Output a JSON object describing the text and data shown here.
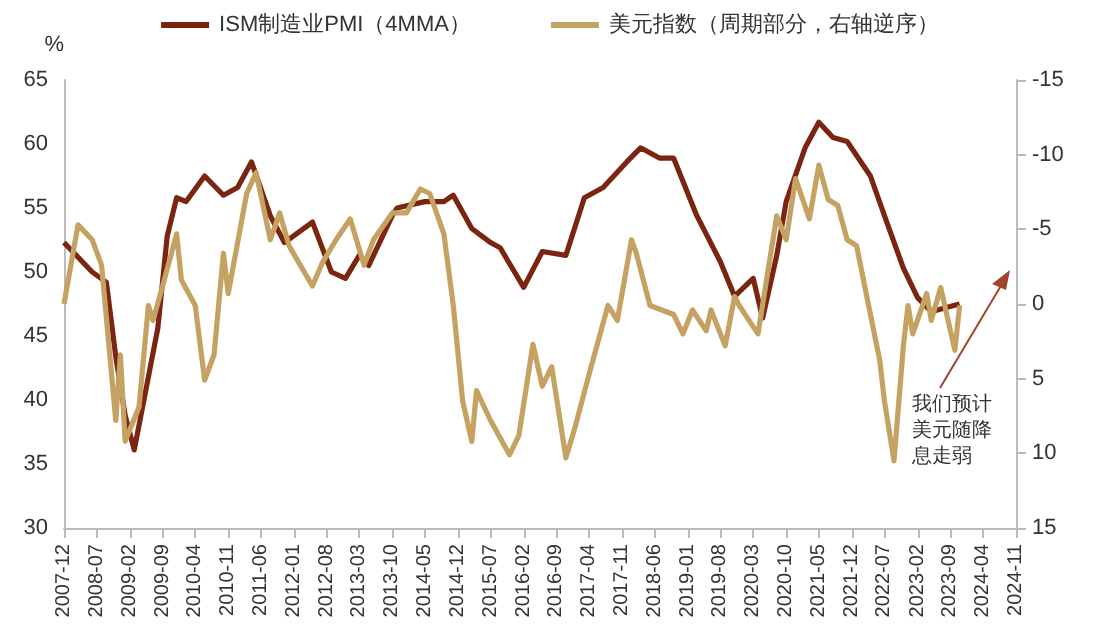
{
  "chart_data": {
    "type": "line",
    "ylabel": "%",
    "legend": "top",
    "xlim": [
      "2007-12",
      "2024-11"
    ],
    "xticks": [
      "2007-12",
      "2008-07",
      "2009-02",
      "2009-09",
      "2010-04",
      "2010-11",
      "2011-06",
      "2012-01",
      "2012-08",
      "2013-03",
      "2013-10",
      "2014-05",
      "2014-12",
      "2015-07",
      "2016-02",
      "2016-09",
      "2017-04",
      "2017-11",
      "2018-06",
      "2019-01",
      "2019-08",
      "2020-03",
      "2020-10",
      "2021-05",
      "2021-12",
      "2022-07",
      "2023-02",
      "2023-09",
      "2024-04",
      "2024-11"
    ],
    "ylim": [
      30,
      65
    ],
    "yticks": [
      30,
      35,
      40,
      45,
      50,
      55,
      60,
      65
    ],
    "y2lim": [
      15,
      -15
    ],
    "y2ticks": [
      -15,
      -10,
      -5,
      0,
      5,
      10,
      15
    ],
    "annotations": [
      "我们预计美元随降息走弱"
    ],
    "series": [
      {
        "name": "ISM制造业PMI（4MMA）",
        "color": "#7b2410",
        "x": [
          "2007-12",
          "2008-06",
          "2008-09",
          "2008-11",
          "2009-01",
          "2009-03",
          "2009-08",
          "2009-10",
          "2009-12",
          "2010-02",
          "2010-06",
          "2010-10",
          "2011-01",
          "2011-04",
          "2011-08",
          "2011-11",
          "2012-05",
          "2012-09",
          "2012-12",
          "2013-03",
          "2013-05",
          "2013-10",
          "2013-11",
          "2014-05",
          "2014-09",
          "2014-11",
          "2015-03",
          "2015-07",
          "2015-09",
          "2016-02",
          "2016-06",
          "2016-11",
          "2017-03",
          "2017-07",
          "2017-12",
          "2018-03",
          "2018-07",
          "2018-10",
          "2019-03",
          "2019-08",
          "2019-11",
          "2020-03",
          "2020-05",
          "2020-08",
          "2020-10",
          "2021-02",
          "2021-05",
          "2021-08",
          "2021-11",
          "2022-04",
          "2022-07",
          "2022-11",
          "2023-02",
          "2023-05",
          "2023-08",
          "2023-11"
        ],
        "values": [
          52.3,
          50,
          49.2,
          43.4,
          38.8,
          36.1,
          45.6,
          52.8,
          55.8,
          55.5,
          57.5,
          56,
          56.6,
          58.6,
          54.4,
          52.3,
          53.9,
          50,
          49.5,
          51.3,
          50.5,
          54.4,
          55,
          55.5,
          55.5,
          56,
          53.4,
          52.3,
          51.9,
          48.8,
          51.6,
          51.3,
          55.8,
          56.6,
          58.6,
          59.7,
          58.9,
          58.9,
          54.4,
          50.8,
          48.1,
          49.5,
          46.4,
          51.3,
          55.5,
          59.7,
          61.7,
          60.5,
          60.2,
          57.5,
          54.4,
          50.3,
          48,
          46.9,
          47.2,
          47.5
        ]
      },
      {
        "name": "美元指数（周期部分，右轴逆序）",
        "color": "#c5a262",
        "axis": "y2",
        "x": [
          "2007-12",
          "2008-03",
          "2008-06",
          "2008-08",
          "2008-11",
          "2008-12",
          "2009-01",
          "2009-04",
          "2009-06",
          "2009-07",
          "2009-09",
          "2009-12",
          "2010-01",
          "2010-04",
          "2010-06",
          "2010-08",
          "2010-10",
          "2010-11",
          "2011-03",
          "2011-05",
          "2011-08",
          "2011-10",
          "2011-12",
          "2012-05",
          "2012-07",
          "2012-10",
          "2013-01",
          "2013-04",
          "2013-06",
          "2013-10",
          "2014-01",
          "2014-04",
          "2014-06",
          "2014-09",
          "2014-11",
          "2015-01",
          "2015-03",
          "2015-04",
          "2015-07",
          "2015-11",
          "2016-01",
          "2016-04",
          "2016-06",
          "2016-08",
          "2016-11",
          "2017-01",
          "2017-04",
          "2017-08",
          "2017-10",
          "2018-01",
          "2018-02",
          "2018-05",
          "2018-10",
          "2018-12",
          "2019-02",
          "2019-05",
          "2019-06",
          "2019-09",
          "2019-11",
          "2019-12",
          "2020-04",
          "2020-07",
          "2020-08",
          "2020-10",
          "2020-12",
          "2021-03",
          "2021-05",
          "2021-07",
          "2021-09",
          "2021-11",
          "2022-01",
          "2022-04",
          "2022-06",
          "2022-07",
          "2022-09",
          "2022-11",
          "2022-12",
          "2023-01",
          "2023-04",
          "2023-05",
          "2023-07",
          "2023-10",
          "2023-11"
        ],
        "values": [
          0,
          -5.3,
          -4.3,
          -2.6,
          7.8,
          3.4,
          9.2,
          6.9,
          0.1,
          1.1,
          -1.2,
          -4.7,
          -1.6,
          0.1,
          5.1,
          3.4,
          -3.4,
          -0.7,
          -7.4,
          -8.8,
          -4.3,
          -6.1,
          -3.9,
          -1.2,
          -2.7,
          -4.3,
          -5.7,
          -2.6,
          -4.3,
          -6.1,
          -6.1,
          -7.7,
          -7.4,
          -4.7,
          0.1,
          6.5,
          9.2,
          5.8,
          7.8,
          10.1,
          8.8,
          2.7,
          5.5,
          4.2,
          10.3,
          8.2,
          4.7,
          0.1,
          1.1,
          -4.3,
          -3.4,
          0.1,
          0.7,
          2,
          0.4,
          1.8,
          0.4,
          2.8,
          -0.5,
          0.1,
          2,
          -3.9,
          -5.9,
          -4.3,
          -8.4,
          -5.7,
          -9.3,
          -7,
          -6.6,
          -4.3,
          -3.9,
          0.7,
          3.8,
          6.5,
          10.5,
          2.8,
          0.1,
          2,
          -0.7,
          1.1,
          -1.1,
          3.1,
          0.1
        ]
      }
    ]
  }
}
